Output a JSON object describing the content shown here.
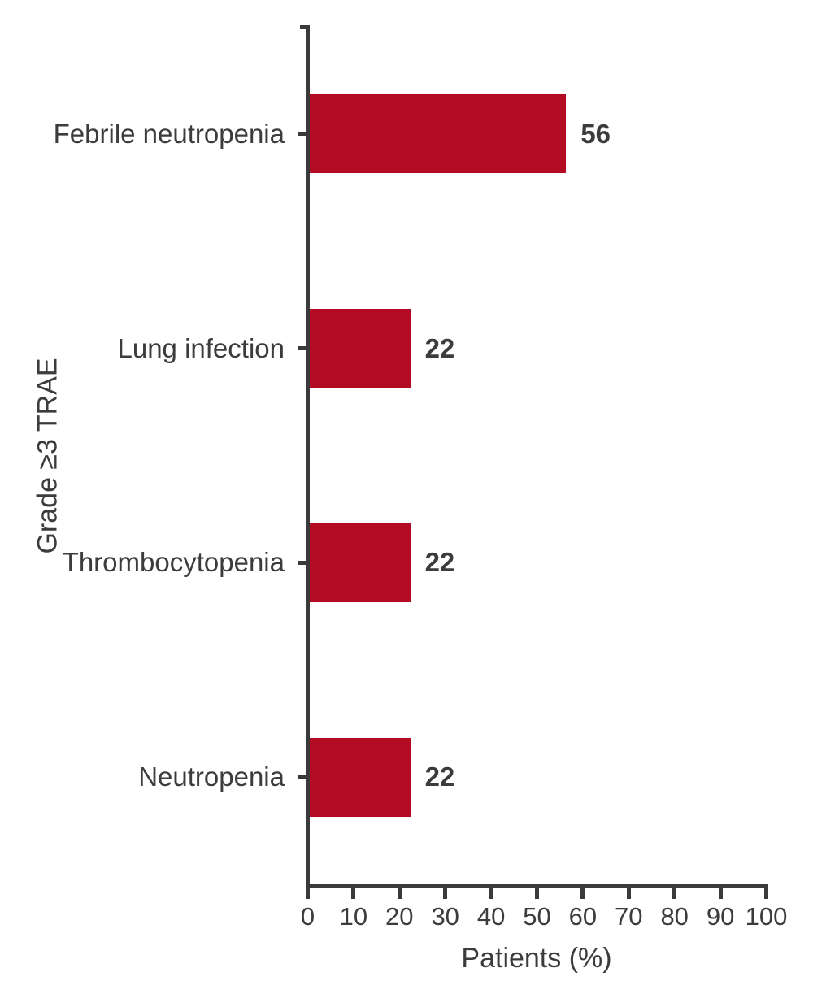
{
  "chart_data": {
    "type": "bar",
    "orientation": "horizontal",
    "title": "",
    "categories": [
      "Febrile neutropenia",
      "Lung infection",
      "Thrombocytopenia",
      "Neutropenia"
    ],
    "values": [
      56,
      22,
      22,
      22
    ],
    "value_labels": [
      "56",
      "22",
      "22",
      "22"
    ],
    "xlabel": "Patients (%)",
    "ylabel": "Grade ≥3 TRAE",
    "xlim": [
      0,
      100
    ],
    "xticks": [
      0,
      10,
      20,
      30,
      40,
      50,
      60,
      70,
      80,
      90,
      100
    ],
    "grid": false,
    "legend": null,
    "bar_color": "#B20B23",
    "axis_color": "#3A3A3A",
    "text_color": "#3C3C3C",
    "background_color": "#FFFFFF"
  }
}
